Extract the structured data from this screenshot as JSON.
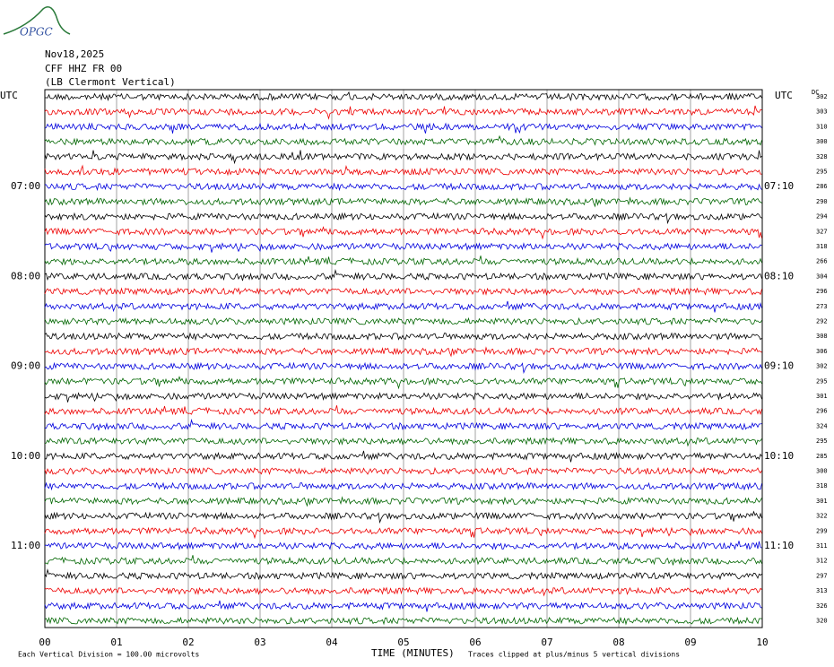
{
  "logo": "OPGC",
  "header": {
    "date": "Nov18,2025",
    "station": "CFF HHZ FR 00",
    "location": "(LB  Clermont Vertical)"
  },
  "left_axis": {
    "title": "UTC",
    "labels": [
      "07:00",
      "08:00",
      "09:00",
      "10:00",
      "11:00"
    ]
  },
  "right_axis": {
    "title": "UTC",
    "corner": "DC",
    "labels": [
      "07:10",
      "08:10",
      "09:10",
      "10:10",
      "11:10"
    ]
  },
  "row_values": [
    "302",
    "303",
    "310",
    "300",
    "328",
    "295",
    "286",
    "290",
    "294",
    "327",
    "318",
    "266",
    "304",
    "296",
    "273",
    "292",
    "308",
    "306",
    "302",
    "295",
    "301",
    "296",
    "324",
    "295",
    "285",
    "300",
    "318",
    "301",
    "322",
    "299",
    "311",
    "312",
    "297",
    "313",
    "326",
    "320"
  ],
  "x_axis": {
    "labels": [
      "00",
      "01",
      "02",
      "03",
      "04",
      "05",
      "06",
      "07",
      "08",
      "09",
      "10"
    ],
    "title": "TIME (MINUTES)"
  },
  "footer": {
    "scale": "Each Vertical Division =  100.00 microvolts",
    "clip": "Traces clipped at plus/minus 5 vertical divisions"
  }
}
